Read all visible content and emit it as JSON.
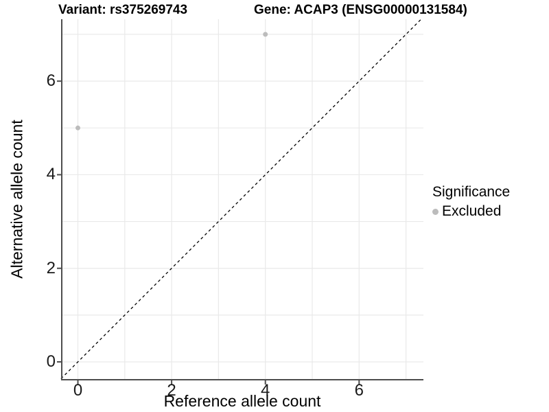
{
  "chart_data": {
    "type": "scatter",
    "title_left": "Variant: rs375269743",
    "title_right": "Gene: ACAP3 (ENSG00000131584)",
    "xlabel": "Reference allele count",
    "ylabel": "Alternative allele count",
    "xlim": [
      -0.36,
      7.37
    ],
    "ylim": [
      -0.38,
      7.32
    ],
    "xticks": [
      0,
      2,
      4,
      6
    ],
    "yticks": [
      0,
      2,
      4,
      6
    ],
    "gridlines_x": [
      0,
      1,
      2,
      3,
      4,
      5,
      6,
      7
    ],
    "gridlines_y": [
      0,
      1,
      2,
      3,
      4,
      5,
      6,
      7
    ],
    "grid": "on",
    "points": [
      {
        "x": 0,
        "y": 5,
        "series": "Excluded"
      },
      {
        "x": 4,
        "y": 7,
        "series": "Excluded"
      }
    ],
    "abline": {
      "style": "dashed",
      "equation": "y = x"
    },
    "legend": {
      "title": "Significance",
      "position": "right",
      "entries": [
        {
          "label": "Excluded",
          "color": "#bcbcbc"
        }
      ]
    },
    "colors": {
      "point": "#bcbcbc",
      "axis": "#4d4d4d",
      "grid": "#e9e9e9",
      "abline": "#000000",
      "background": "#ffffff"
    }
  }
}
